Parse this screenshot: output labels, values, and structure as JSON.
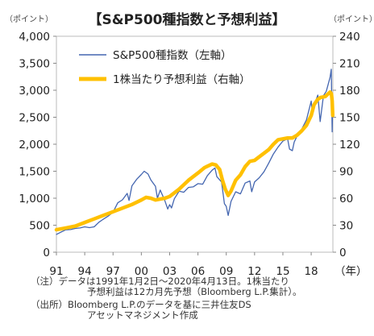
{
  "title": "【S&P500種指数と予想利益】",
  "left_unit": "（ポイント）",
  "right_unit": "（ポイント）",
  "x_unit": "（年）",
  "notes": [
    "（注）データは1991年1月2日～2020年4月13日。1株当たり",
    "予想利益は12カ月先予想（Bloomberg L.P.集計）。",
    "（出所）Bloomberg L.P.のデータを基に三井住友DS",
    "アセットマネジメント作成"
  ],
  "chart_data": {
    "type": "line",
    "title": "【S&P500種指数と予想利益】",
    "xlabel": "（年）",
    "ylabel_left": "（ポイント）",
    "ylabel_right": "（ポイント）",
    "x_ticks": [
      "91",
      "94",
      "97",
      "00",
      "03",
      "06",
      "09",
      "12",
      "15",
      "18"
    ],
    "x_range": [
      1991.0,
      2020.3
    ],
    "left_axis": {
      "min": 0,
      "max": 4000,
      "ticks": [
        "0",
        "500",
        "1,000",
        "1,500",
        "2,000",
        "2,500",
        "3,000",
        "3,500",
        "4,000"
      ]
    },
    "right_axis": {
      "min": 0,
      "max": 240,
      "ticks": [
        "0",
        "30",
        "60",
        "90",
        "120",
        "150",
        "180",
        "210",
        "240"
      ]
    },
    "legend_position": "top-left",
    "series": [
      {
        "name": "S&P500種指数（左軸）",
        "axis": "left",
        "color": "#4466b0",
        "points": [
          [
            1991.0,
            330
          ],
          [
            1991.5,
            375
          ],
          [
            1992.0,
            415
          ],
          [
            1992.5,
            420
          ],
          [
            1993.0,
            440
          ],
          [
            1993.5,
            450
          ],
          [
            1994.0,
            470
          ],
          [
            1994.5,
            455
          ],
          [
            1995.0,
            470
          ],
          [
            1995.5,
            555
          ],
          [
            1996.0,
            615
          ],
          [
            1996.5,
            670
          ],
          [
            1997.0,
            740
          ],
          [
            1997.5,
            915
          ],
          [
            1998.0,
            970
          ],
          [
            1998.5,
            1090
          ],
          [
            1998.7,
            960
          ],
          [
            1999.0,
            1230
          ],
          [
            1999.5,
            1350
          ],
          [
            2000.0,
            1440
          ],
          [
            2000.3,
            1500
          ],
          [
            2000.7,
            1450
          ],
          [
            2001.0,
            1340
          ],
          [
            2001.5,
            1220
          ],
          [
            2001.7,
            1000
          ],
          [
            2002.0,
            1150
          ],
          [
            2002.5,
            950
          ],
          [
            2002.8,
            800
          ],
          [
            2003.0,
            880
          ],
          [
            2003.2,
            820
          ],
          [
            2003.5,
            990
          ],
          [
            2004.0,
            1130
          ],
          [
            2004.5,
            1110
          ],
          [
            2005.0,
            1200
          ],
          [
            2005.5,
            1210
          ],
          [
            2006.0,
            1270
          ],
          [
            2006.5,
            1260
          ],
          [
            2007.0,
            1420
          ],
          [
            2007.5,
            1520
          ],
          [
            2007.8,
            1560
          ],
          [
            2008.0,
            1400
          ],
          [
            2008.5,
            1300
          ],
          [
            2008.8,
            900
          ],
          [
            2009.0,
            850
          ],
          [
            2009.2,
            680
          ],
          [
            2009.5,
            940
          ],
          [
            2010.0,
            1120
          ],
          [
            2010.5,
            1080
          ],
          [
            2011.0,
            1280
          ],
          [
            2011.5,
            1320
          ],
          [
            2011.7,
            1120
          ],
          [
            2012.0,
            1300
          ],
          [
            2012.5,
            1380
          ],
          [
            2013.0,
            1490
          ],
          [
            2013.5,
            1650
          ],
          [
            2014.0,
            1820
          ],
          [
            2014.5,
            1950
          ],
          [
            2015.0,
            2060
          ],
          [
            2015.5,
            2100
          ],
          [
            2015.7,
            1910
          ],
          [
            2016.0,
            1880
          ],
          [
            2016.2,
            2040
          ],
          [
            2016.5,
            2150
          ],
          [
            2017.0,
            2280
          ],
          [
            2017.5,
            2450
          ],
          [
            2018.0,
            2800
          ],
          [
            2018.1,
            2620
          ],
          [
            2018.7,
            2910
          ],
          [
            2018.95,
            2420
          ],
          [
            2019.3,
            2900
          ],
          [
            2019.6,
            2980
          ],
          [
            2020.0,
            3240
          ],
          [
            2020.13,
            3390
          ],
          [
            2020.22,
            2230
          ],
          [
            2020.28,
            2760
          ]
        ]
      },
      {
        "name": "1株当たり予想利益（右軸）",
        "axis": "right",
        "color": "#ffc000",
        "points": [
          [
            1991.0,
            25
          ],
          [
            1992.0,
            27
          ],
          [
            1993.0,
            29
          ],
          [
            1994.0,
            33
          ],
          [
            1995.0,
            37
          ],
          [
            1996.0,
            41
          ],
          [
            1997.0,
            45
          ],
          [
            1998.0,
            49
          ],
          [
            1999.0,
            53
          ],
          [
            2000.0,
            58
          ],
          [
            2000.5,
            61
          ],
          [
            2001.0,
            60
          ],
          [
            2001.5,
            58
          ],
          [
            2002.0,
            59
          ],
          [
            2002.5,
            60
          ],
          [
            2003.0,
            62
          ],
          [
            2004.0,
            70
          ],
          [
            2005.0,
            80
          ],
          [
            2006.0,
            88
          ],
          [
            2006.7,
            94
          ],
          [
            2007.5,
            98
          ],
          [
            2007.9,
            97
          ],
          [
            2008.3,
            92
          ],
          [
            2008.6,
            80
          ],
          [
            2008.9,
            70
          ],
          [
            2009.2,
            63
          ],
          [
            2009.5,
            68
          ],
          [
            2010.0,
            80
          ],
          [
            2010.5,
            86
          ],
          [
            2011.0,
            95
          ],
          [
            2011.5,
            101
          ],
          [
            2012.0,
            102
          ],
          [
            2012.5,
            106
          ],
          [
            2013.0,
            110
          ],
          [
            2013.5,
            114
          ],
          [
            2014.0,
            120
          ],
          [
            2014.5,
            125
          ],
          [
            2015.0,
            126
          ],
          [
            2015.5,
            127
          ],
          [
            2016.0,
            127
          ],
          [
            2016.5,
            130
          ],
          [
            2017.0,
            135
          ],
          [
            2017.5,
            141
          ],
          [
            2018.0,
            152
          ],
          [
            2018.3,
            164
          ],
          [
            2018.7,
            170
          ],
          [
            2019.0,
            172
          ],
          [
            2019.5,
            173
          ],
          [
            2020.0,
            178
          ],
          [
            2020.15,
            176
          ],
          [
            2020.22,
            168
          ],
          [
            2020.28,
            152
          ]
        ]
      }
    ]
  }
}
